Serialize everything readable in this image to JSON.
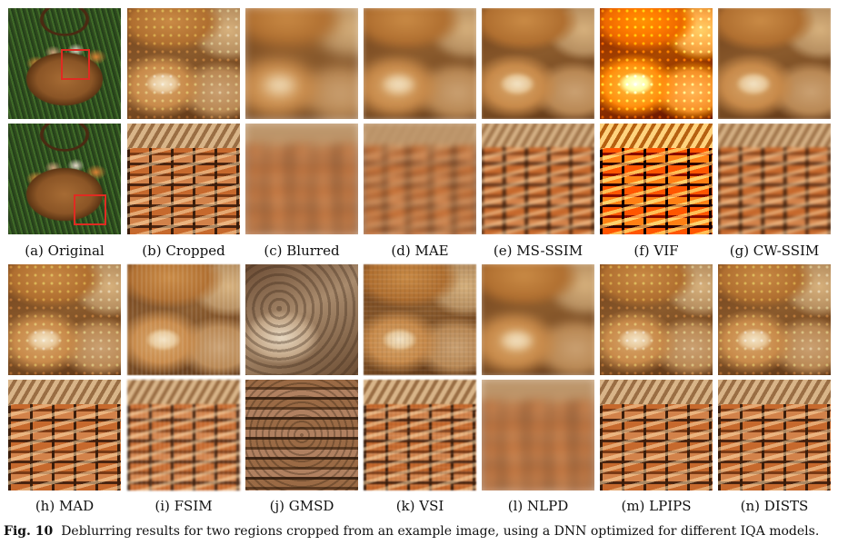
{
  "labels": {
    "a": "(a) Original",
    "b": "(b) Cropped",
    "c": "(c) Blurred",
    "d": "(d) MAE",
    "e": "(e) MS-SSIM",
    "f": "(f) VIF",
    "g": "(g) CW-SSIM",
    "h": "(h) MAD",
    "i": "(i) FSIM",
    "j": "(j) GMSD",
    "k": "(k) VSI",
    "l": "(l) NLPD",
    "m": "(m) LPIPS",
    "n": "(n) DISTS"
  },
  "caption": {
    "prefix": "Fig. 10",
    "text": "Deblurring results for two regions cropped from an example image, using a DNN optimized for different IQA models."
  },
  "colors": {
    "crop_box": "#e02b22"
  }
}
